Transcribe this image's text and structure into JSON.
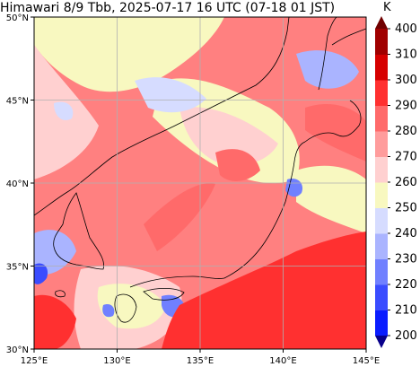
{
  "title": "Himawari 8/9 Tbb, 2025-07-17 16 UTC (07-18 01 JST)",
  "map": {
    "lon_range": [
      125,
      145
    ],
    "lat_range": [
      30,
      50
    ],
    "lon_ticks": [
      {
        "value": 125,
        "label": "125°E"
      },
      {
        "value": 130,
        "label": "130°E"
      },
      {
        "value": 135,
        "label": "135°E"
      },
      {
        "value": 140,
        "label": "140°E"
      },
      {
        "value": 145,
        "label": "145°E"
      }
    ],
    "lat_ticks": [
      {
        "value": 30,
        "label": "30°N"
      },
      {
        "value": 35,
        "label": "35°N"
      },
      {
        "value": 40,
        "label": "40°N"
      },
      {
        "value": 45,
        "label": "45°N"
      },
      {
        "value": 50,
        "label": "50°N"
      }
    ],
    "gridlines": true
  },
  "colorbar": {
    "unit": "K",
    "levels": [
      200,
      210,
      220,
      230,
      240,
      250,
      260,
      270,
      280,
      290,
      300,
      310,
      400
    ],
    "labels": [
      "200",
      "210",
      "220",
      "230",
      "240",
      "250",
      "260",
      "270",
      "280",
      "290",
      "300",
      "310",
      "400"
    ],
    "colors": [
      "#08008a",
      "#0a1cff",
      "#3a4cff",
      "#7080ff",
      "#aab4ff",
      "#d6dcff",
      "#f8f8c0",
      "#ffd0d0",
      "#ff9c9c",
      "#ff6a6a",
      "#ff3030",
      "#d60000",
      "#a00000",
      "#700000"
    ]
  },
  "coast_color": "#000000",
  "grid_color": "#b0b0b0"
}
